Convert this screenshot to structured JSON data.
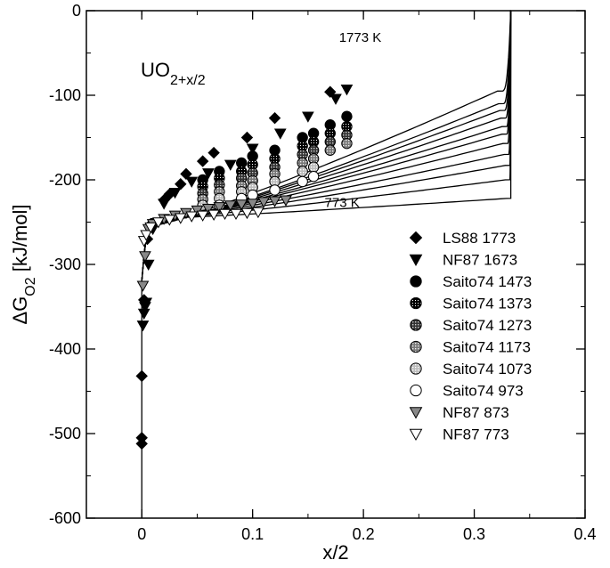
{
  "chart_data": {
    "type": "scatter",
    "title": "",
    "formula": {
      "base": "UO",
      "sub": "2+x/2"
    },
    "xlabel": "x/2",
    "ylabel": {
      "main": "ΔG",
      "sub": "O2",
      "unit": " [kJ/mol]"
    },
    "xlim": [
      -0.05,
      0.4
    ],
    "ylim": [
      -600,
      0
    ],
    "xticks": [
      0,
      0.1,
      0.2,
      0.3,
      0.4
    ],
    "xtick_labels": [
      "0",
      "0.1",
      "0.2",
      "0.3",
      "0.4"
    ],
    "yticks": [
      0,
      -100,
      -200,
      -300,
      -400,
      -500,
      -600
    ],
    "ytick_labels": [
      "0",
      "-100",
      "-200",
      "-300",
      "-400",
      "-500",
      "-600"
    ],
    "grid": false,
    "legend_position": "right",
    "annotations": [
      {
        "text": "1773 K",
        "x": 0.178,
        "y": -37
      },
      {
        "text": "773 K",
        "x": 0.165,
        "y": -232
      }
    ],
    "model_curves": [
      {
        "T": 1773,
        "plateau": -255,
        "end": -95,
        "x_max": 0.325
      },
      {
        "T": 1673,
        "plateau": -255,
        "end": -110,
        "x_max": 0.326
      },
      {
        "T": 1573,
        "plateau": -254,
        "end": -118,
        "x_max": 0.327
      },
      {
        "T": 1473,
        "plateau": -253,
        "end": -127,
        "x_max": 0.328
      },
      {
        "T": 1373,
        "plateau": -252,
        "end": -137,
        "x_max": 0.329
      },
      {
        "T": 1273,
        "plateau": -251,
        "end": -146,
        "x_max": 0.329
      },
      {
        "T": 1173,
        "plateau": -250,
        "end": -157,
        "x_max": 0.33
      },
      {
        "T": 1073,
        "plateau": -249,
        "end": -170,
        "x_max": 0.331
      },
      {
        "T": 973,
        "plateau": -248,
        "end": -183,
        "x_max": 0.332
      },
      {
        "T": 873,
        "plateau": -247,
        "end": -200,
        "x_max": 0.332
      },
      {
        "T": 773,
        "plateau": -246,
        "end": -222,
        "x_max": 0.333
      }
    ],
    "series": [
      {
        "name": "LS88 1773",
        "marker": "diamond",
        "fill": "#000000",
        "points": [
          [
            0.0,
            -512
          ],
          [
            0.0,
            -505
          ],
          [
            0.0,
            -432
          ],
          [
            0.002,
            -342
          ],
          [
            0.005,
            -270
          ],
          [
            0.01,
            -252
          ],
          [
            0.02,
            -224
          ],
          [
            0.025,
            -217
          ],
          [
            0.035,
            -205
          ],
          [
            0.04,
            -193
          ],
          [
            0.055,
            -178
          ],
          [
            0.065,
            -168
          ],
          [
            0.095,
            -150
          ],
          [
            0.12,
            -127
          ],
          [
            0.17,
            -96
          ]
        ]
      },
      {
        "name": "NF87 1673",
        "marker": "triangle-down",
        "fill": "#000000",
        "points": [
          [
            0.001,
            -372
          ],
          [
            0.002,
            -358
          ],
          [
            0.003,
            -350
          ],
          [
            0.004,
            -345
          ],
          [
            0.006,
            -300
          ],
          [
            0.01,
            -258
          ],
          [
            0.02,
            -228
          ],
          [
            0.03,
            -215
          ],
          [
            0.045,
            -202
          ],
          [
            0.06,
            -192
          ],
          [
            0.08,
            -182
          ],
          [
            0.1,
            -163
          ],
          [
            0.125,
            -145
          ],
          [
            0.15,
            -125
          ],
          [
            0.175,
            -104
          ],
          [
            0.185,
            -93
          ]
        ]
      },
      {
        "name": "Saito74 1473",
        "marker": "circle",
        "fill": "#000000",
        "points": [
          [
            0.055,
            -200
          ],
          [
            0.07,
            -190
          ],
          [
            0.09,
            -180
          ],
          [
            0.1,
            -172
          ],
          [
            0.12,
            -165
          ],
          [
            0.145,
            -150
          ],
          [
            0.155,
            -145
          ],
          [
            0.17,
            -135
          ],
          [
            0.185,
            -125
          ]
        ]
      },
      {
        "name": "Saito74 1373",
        "marker": "circle",
        "fill": "pattern-1373",
        "points": [
          [
            0.055,
            -208
          ],
          [
            0.07,
            -198
          ],
          [
            0.09,
            -190
          ],
          [
            0.1,
            -182
          ],
          [
            0.12,
            -175
          ],
          [
            0.145,
            -160
          ],
          [
            0.155,
            -155
          ],
          [
            0.17,
            -145
          ],
          [
            0.185,
            -137
          ]
        ]
      },
      {
        "name": "Saito74 1273",
        "marker": "circle",
        "fill": "pattern-1273",
        "points": [
          [
            0.055,
            -216
          ],
          [
            0.07,
            -206
          ],
          [
            0.09,
            -198
          ],
          [
            0.1,
            -192
          ],
          [
            0.12,
            -185
          ],
          [
            0.145,
            -170
          ],
          [
            0.155,
            -165
          ],
          [
            0.17,
            -155
          ],
          [
            0.185,
            -147
          ]
        ]
      },
      {
        "name": "Saito74 1173",
        "marker": "circle",
        "fill": "pattern-1173",
        "points": [
          [
            0.055,
            -223
          ],
          [
            0.07,
            -214
          ],
          [
            0.09,
            -207
          ],
          [
            0.1,
            -201
          ],
          [
            0.12,
            -193
          ],
          [
            0.145,
            -180
          ],
          [
            0.155,
            -175
          ],
          [
            0.17,
            -165
          ],
          [
            0.185,
            -157
          ]
        ]
      },
      {
        "name": "Saito74 1073",
        "marker": "circle",
        "fill": "pattern-1073",
        "points": [
          [
            0.055,
            -230
          ],
          [
            0.07,
            -222
          ],
          [
            0.09,
            -214
          ],
          [
            0.1,
            -209
          ],
          [
            0.12,
            -202
          ],
          [
            0.145,
            -190
          ],
          [
            0.155,
            -185
          ]
        ]
      },
      {
        "name": "Saito74 973",
        "marker": "circle",
        "fill": "#ffffff",
        "points": [
          [
            0.07,
            -230
          ],
          [
            0.09,
            -222
          ],
          [
            0.1,
            -218
          ],
          [
            0.12,
            -212
          ],
          [
            0.145,
            -202
          ],
          [
            0.155,
            -196
          ]
        ]
      },
      {
        "name": "NF87 873",
        "marker": "triangle-down",
        "fill": "#888888",
        "points": [
          [
            0.001,
            -325
          ],
          [
            0.003,
            -290
          ],
          [
            0.006,
            -258
          ],
          [
            0.01,
            -252
          ],
          [
            0.02,
            -246
          ],
          [
            0.03,
            -242
          ],
          [
            0.04,
            -239
          ],
          [
            0.05,
            -236
          ],
          [
            0.06,
            -234
          ],
          [
            0.07,
            -232
          ],
          [
            0.08,
            -230
          ],
          [
            0.09,
            -229
          ],
          [
            0.1,
            -228
          ],
          [
            0.11,
            -226
          ],
          [
            0.12,
            -225
          ],
          [
            0.13,
            -224
          ]
        ]
      },
      {
        "name": "NF87 773",
        "marker": "triangle-down",
        "fill": "#ffffff",
        "points": [
          [
            0.002,
            -272
          ],
          [
            0.004,
            -265
          ],
          [
            0.008,
            -256
          ],
          [
            0.015,
            -250
          ],
          [
            0.025,
            -247
          ],
          [
            0.035,
            -245
          ],
          [
            0.045,
            -243
          ],
          [
            0.055,
            -242
          ],
          [
            0.065,
            -241
          ],
          [
            0.075,
            -240
          ],
          [
            0.085,
            -240
          ],
          [
            0.095,
            -239
          ],
          [
            0.105,
            -238
          ]
        ]
      }
    ]
  }
}
